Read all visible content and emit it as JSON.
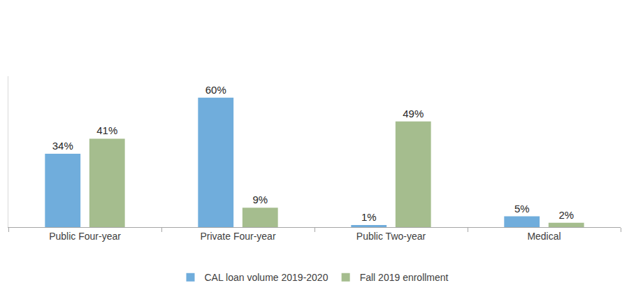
{
  "chart_data": {
    "type": "bar",
    "categories": [
      "Public Four-year",
      "Private Four-year",
      "Public Two-year",
      "Medical"
    ],
    "series": [
      {
        "name": "CAL loan volume 2019-2020",
        "color": "#70addc",
        "values": [
          34,
          60,
          1,
          5
        ],
        "value_labels": [
          "34%",
          "60%",
          "1%",
          "5%"
        ]
      },
      {
        "name": "Fall 2019 enrollment",
        "color": "#a5bd8e",
        "values": [
          41,
          9,
          49,
          2
        ],
        "value_labels": [
          "41%",
          "9%",
          "49%",
          "2%"
        ]
      }
    ],
    "ylim": [
      0,
      70
    ],
    "data_labels": true,
    "tick_labels": "x",
    "legend": "bottom",
    "grid": false
  }
}
